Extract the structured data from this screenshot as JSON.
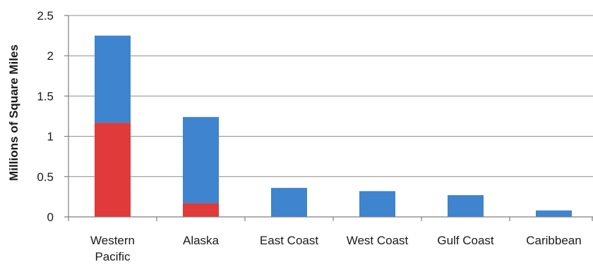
{
  "chart_data": {
    "type": "bar",
    "stacked": true,
    "categories": [
      "Western Pacific",
      "Alaska",
      "East Coast",
      "West Coast",
      "Gulf Coast",
      "Caribbean"
    ],
    "series": [
      {
        "color": "#e03a3a",
        "values": [
          1.17,
          0.17,
          0,
          0,
          0,
          0
        ]
      },
      {
        "color": "#3f84cf",
        "values": [
          1.08,
          1.07,
          0.36,
          0.32,
          0.27,
          0.08
        ]
      }
    ],
    "ylabel": "Millions of Square Miles",
    "xlabel": "",
    "ylim": [
      0,
      2.5
    ],
    "yticks": [
      0,
      0.5,
      1,
      1.5,
      2,
      2.5
    ],
    "ytick_labels": [
      "0",
      "0.5",
      "1",
      "1.5",
      "2",
      "2.5"
    ],
    "grid": true,
    "legend": "none"
  }
}
